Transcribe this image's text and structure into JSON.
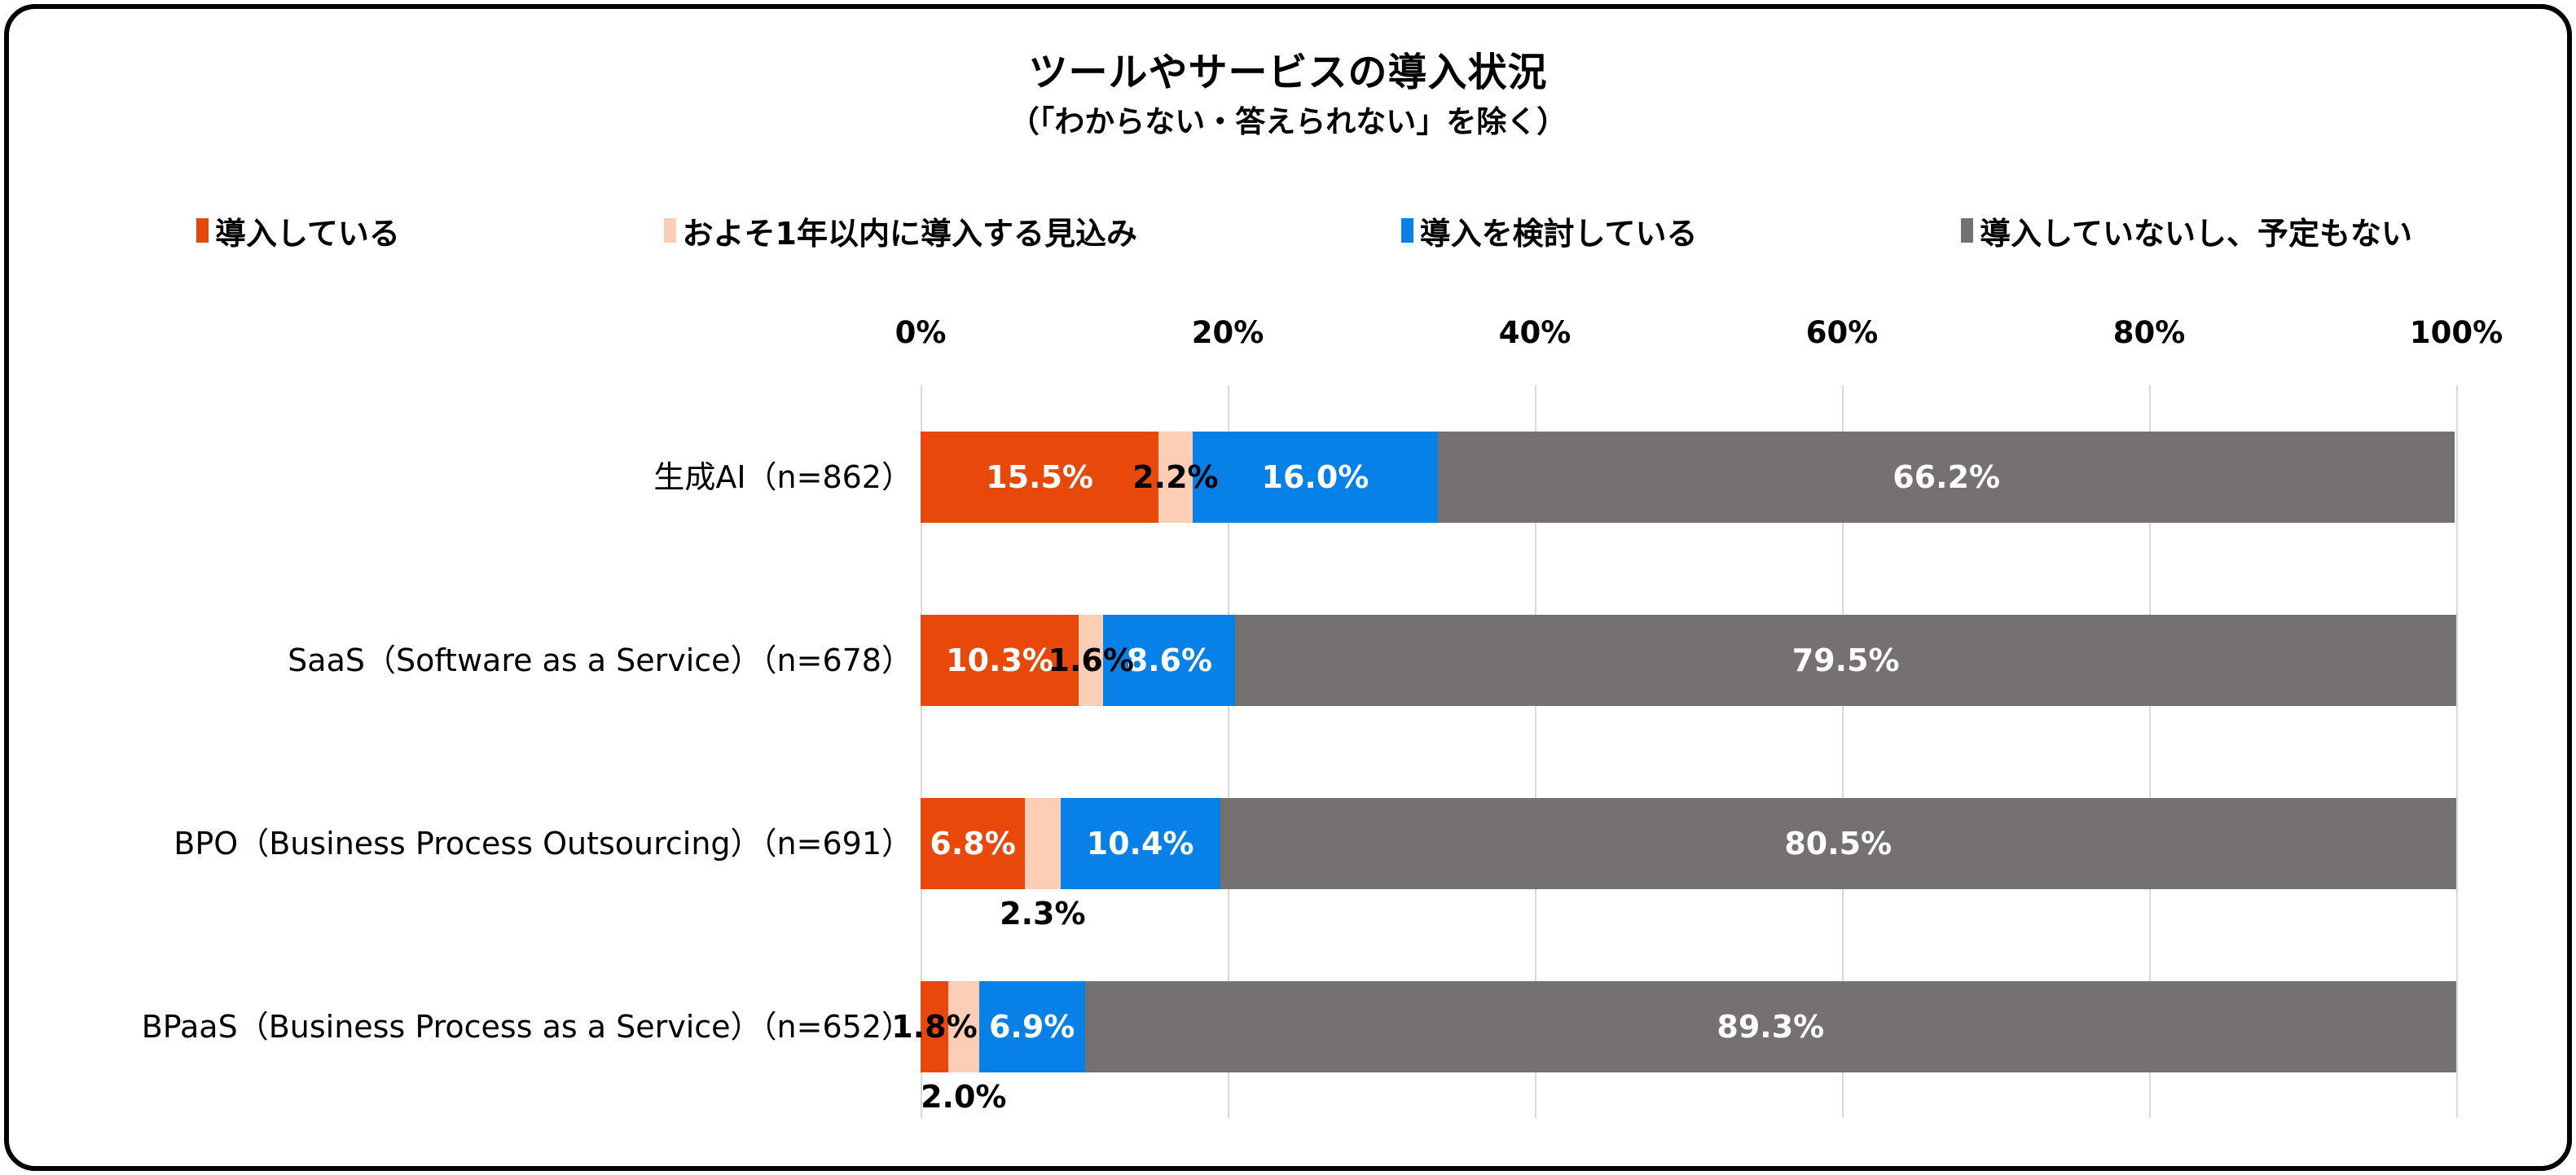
{
  "title": "ツールやサービスの導入状況",
  "subtitle": "（「わからない・答えられない」を除く）",
  "colors": {
    "adopted": "#E8490B",
    "planned": "#FBCEB5",
    "considering": "#0780E8",
    "none": "#767171",
    "gridline": "#D9D9D9",
    "frame_border": "#000000",
    "background": "#FFFFFF"
  },
  "chart_data": {
    "type": "bar",
    "stacked": true,
    "orientation": "horizontal",
    "title": "ツールやサービスの導入状況",
    "subtitle": "（「わからない・答えられない」を除く）",
    "legend_position": "top",
    "grid": true,
    "x_axis": {
      "position": "top",
      "min": 0,
      "max": 100,
      "tick_labels": [
        "0%",
        "20%",
        "40%",
        "60%",
        "80%",
        "100%"
      ],
      "tick_values": [
        0,
        20,
        40,
        60,
        80,
        100
      ]
    },
    "categories": [
      "生成AI（n=862）",
      "SaaS（Software as a Service）（n=678）",
      "BPO（Business Process Outsourcing）（n=691）",
      "BPaaS（Business Process as a Service）（n=652）"
    ],
    "series": [
      {
        "name": "導入している",
        "color": "#E8490B",
        "values": [
          15.5,
          10.3,
          6.8,
          1.8
        ],
        "labels": [
          "15.5%",
          "10.3%",
          "6.8%",
          "1.8%"
        ]
      },
      {
        "name": "およそ1年以内に導入する見込み",
        "color": "#FBCEB5",
        "values": [
          2.2,
          1.6,
          2.3,
          2.0
        ],
        "labels": [
          "2.2%",
          "1.6%",
          "2.3%",
          "2.0%"
        ]
      },
      {
        "name": "導入を検討している",
        "color": "#0780E8",
        "values": [
          16.0,
          8.6,
          10.4,
          6.9
        ],
        "labels": [
          "16.0%",
          "8.6%",
          "10.4%",
          "6.9%"
        ]
      },
      {
        "name": "導入していないし、予定もない",
        "color": "#767171",
        "values": [
          66.2,
          79.5,
          80.5,
          89.3
        ],
        "labels": [
          "66.2%",
          "79.5%",
          "80.5%",
          "89.3%"
        ]
      }
    ],
    "label_placement_by_row": [
      [
        "inside-white",
        "inside-black",
        "inside-white",
        "inside-white"
      ],
      [
        "inside-white",
        "inside-black",
        "inside-white",
        "inside-white"
      ],
      [
        "inside-white",
        "below-black",
        "inside-white",
        "inside-white"
      ],
      [
        "inside-black",
        "below-black",
        "inside-white",
        "inside-white"
      ]
    ]
  }
}
